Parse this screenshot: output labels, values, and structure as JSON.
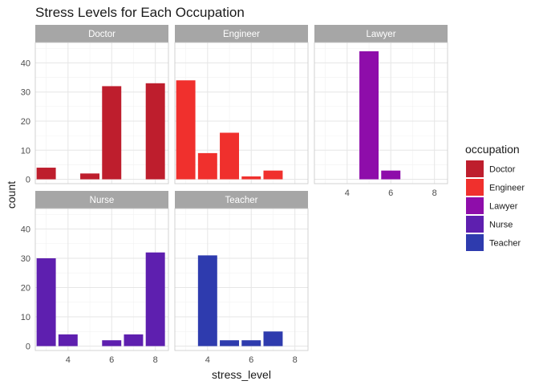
{
  "chart_data": {
    "type": "bar",
    "title": "Stress Levels for Each Occupation",
    "xlabel": "stress_level",
    "ylabel": "count",
    "xlim": [
      2.5,
      8.6
    ],
    "ylim": [
      -1.5,
      47
    ],
    "x_ticks": [
      4,
      6,
      8
    ],
    "y_ticks": [
      0,
      10,
      20,
      30,
      40
    ],
    "grid": true,
    "legend": {
      "title": "occupation",
      "position": "right",
      "entries": [
        {
          "name": "Doctor",
          "color": "#BE1E2D"
        },
        {
          "name": "Engineer",
          "color": "#F0302D"
        },
        {
          "name": "Lawyer",
          "color": "#8E0DAA"
        },
        {
          "name": "Nurse",
          "color": "#5E1FAF"
        },
        {
          "name": "Teacher",
          "color": "#2E3BAE"
        }
      ]
    },
    "panels": [
      {
        "name": "Doctor",
        "color": "#BE1E2D",
        "x": [
          3,
          4,
          5,
          6,
          7,
          8
        ],
        "values": [
          4,
          0,
          2,
          32,
          0,
          33
        ]
      },
      {
        "name": "Engineer",
        "color": "#F0302D",
        "x": [
          3,
          4,
          5,
          6,
          7,
          8
        ],
        "values": [
          34,
          9,
          16,
          1,
          3,
          0
        ]
      },
      {
        "name": "Lawyer",
        "color": "#8E0DAA",
        "x": [
          3,
          4,
          5,
          6,
          7,
          8
        ],
        "values": [
          0,
          0,
          44,
          3,
          0,
          0
        ]
      },
      {
        "name": "Nurse",
        "color": "#5E1FAF",
        "x": [
          3,
          4,
          5,
          6,
          7,
          8
        ],
        "values": [
          30,
          4,
          0,
          2,
          4,
          32
        ]
      },
      {
        "name": "Teacher",
        "color": "#2E3BAE",
        "x": [
          3,
          4,
          5,
          6,
          7,
          8
        ],
        "values": [
          0,
          31,
          2,
          2,
          5,
          0
        ]
      }
    ]
  }
}
